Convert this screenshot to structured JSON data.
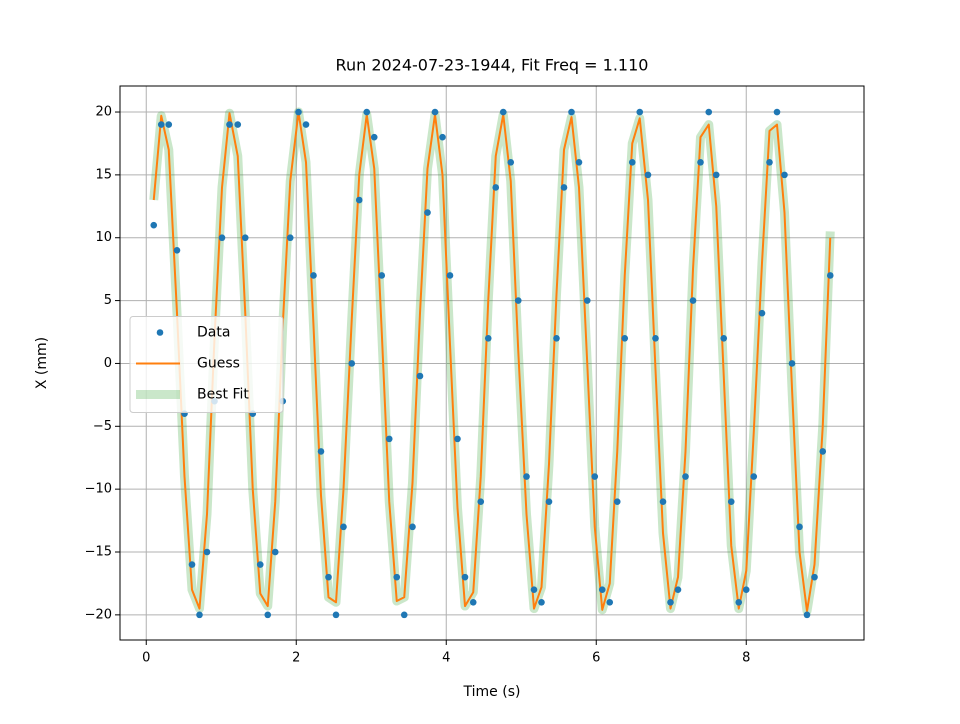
{
  "chart_data": {
    "type": "line",
    "title": "Run 2024-07-23-1944, Fit Freq = 1.110",
    "xlabel": "Time (s)",
    "ylabel": "X (mm)",
    "x": [
      0.1,
      0.2,
      0.3,
      0.41,
      0.51,
      0.61,
      0.71,
      0.81,
      0.91,
      1.01,
      1.11,
      1.22,
      1.32,
      1.42,
      1.52,
      1.62,
      1.72,
      1.82,
      1.92,
      2.03,
      2.13,
      2.23,
      2.33,
      2.43,
      2.53,
      2.63,
      2.74,
      2.84,
      2.94,
      3.04,
      3.14,
      3.24,
      3.34,
      3.44,
      3.55,
      3.65,
      3.75,
      3.85,
      3.95,
      4.05,
      4.15,
      4.25,
      4.36,
      4.46,
      4.56,
      4.66,
      4.76,
      4.86,
      4.96,
      5.07,
      5.17,
      5.27,
      5.37,
      5.47,
      5.57,
      5.67,
      5.77,
      5.88,
      5.98,
      6.08,
      6.18,
      6.28,
      6.38,
      6.48,
      6.58,
      6.69,
      6.79,
      6.89,
      6.99,
      7.09,
      7.19,
      7.29,
      7.39,
      7.5,
      7.6,
      7.7,
      7.8,
      7.9,
      8.0,
      8.1,
      8.21,
      8.31,
      8.41,
      8.51,
      8.61,
      8.71,
      8.81,
      8.91,
      9.02,
      9.12
    ],
    "series": [
      {
        "name": "Data",
        "mode": "markers",
        "color": "#1f77b4",
        "values": [
          11,
          19,
          19,
          9,
          -4,
          -16,
          -20,
          -15,
          -3,
          10,
          19,
          19,
          10,
          -4,
          -16,
          -20,
          -15,
          -3,
          10,
          20,
          19,
          7,
          -7,
          -17,
          -20,
          -13,
          0,
          13,
          20,
          18,
          7,
          -6,
          -17,
          -20,
          -13,
          -1,
          12,
          20,
          18,
          7,
          -6,
          -17,
          -19,
          -11,
          2,
          14,
          20,
          16,
          5,
          -9,
          -18,
          -19,
          -11,
          2,
          14,
          20,
          16,
          5,
          -9,
          -18,
          -19,
          -11,
          2,
          16,
          20,
          15,
          2,
          -11,
          -19,
          -18,
          -9,
          5,
          16,
          20,
          15,
          2,
          -11,
          -19,
          -18,
          -9,
          4,
          16,
          20,
          15,
          0,
          -13,
          -20,
          -17,
          -7,
          7
        ]
      },
      {
        "name": "Guess",
        "mode": "line",
        "color": "#ff7f0e",
        "values": [
          13,
          19.7,
          17,
          4,
          -9,
          -18,
          -19.5,
          -12,
          2,
          14,
          19.9,
          16.5,
          4,
          -10,
          -18.3,
          -19.3,
          -11,
          3,
          14.5,
          20,
          16,
          3,
          -10.5,
          -18.6,
          -19,
          -10,
          3.5,
          15,
          19.8,
          15.5,
          2.5,
          -11,
          -18.9,
          -18.6,
          -9.5,
          4,
          15.5,
          19.8,
          15,
          1.5,
          -11.5,
          -19.3,
          -18.2,
          -9,
          5,
          16.5,
          19.8,
          14.5,
          1,
          -12,
          -19.5,
          -17.8,
          -8,
          5.5,
          17,
          19.6,
          14,
          0,
          -13,
          -19.6,
          -17.5,
          -7,
          7,
          17.5,
          19.5,
          13,
          -0.5,
          -13.5,
          -19.5,
          -17,
          -7,
          7.5,
          18,
          19,
          12.5,
          -1,
          -14.5,
          -19.5,
          -16.5,
          -5.5,
          8,
          18.5,
          19,
          12,
          -2,
          -15,
          -19.7,
          -16,
          -5,
          10
        ]
      },
      {
        "name": "Best Fit",
        "mode": "line",
        "color": "#2ca02c",
        "values": [
          13,
          19.7,
          17,
          4,
          -9,
          -18,
          -19.5,
          -12,
          2,
          14,
          19.9,
          16.5,
          4,
          -10,
          -18.3,
          -19.3,
          -11,
          3,
          14.5,
          20,
          16,
          3,
          -10.5,
          -18.6,
          -19,
          -10,
          3.5,
          15,
          19.8,
          15.5,
          2.5,
          -11,
          -18.9,
          -18.6,
          -9.5,
          4,
          15.5,
          19.8,
          15,
          1.5,
          -11.5,
          -19.3,
          -18.2,
          -9,
          5,
          16.5,
          19.8,
          14.5,
          1,
          -12,
          -19.5,
          -17.8,
          -8,
          5.5,
          17,
          19.6,
          14,
          0,
          -13,
          -19.6,
          -17.5,
          -7,
          7,
          17.5,
          19.5,
          13,
          -0.5,
          -13.5,
          -19.5,
          -17,
          -7,
          7.5,
          18,
          19,
          12.5,
          -1,
          -14.5,
          -19.5,
          -16.5,
          -5.5,
          8,
          18.5,
          19,
          12,
          -2,
          -15,
          -19.7,
          -16,
          -5,
          10.5
        ]
      }
    ],
    "xlim": [
      -0.35,
      9.57
    ],
    "ylim": [
      -22,
      22.07
    ],
    "xticks": [
      0,
      2,
      4,
      6,
      8
    ],
    "yticks": [
      {
        "value": -20,
        "label": "−20"
      },
      {
        "value": -15,
        "label": "−15"
      },
      {
        "value": -10,
        "label": "−10"
      },
      {
        "value": -5,
        "label": "−5"
      },
      0,
      5,
      10,
      15,
      20
    ],
    "grid": true,
    "legend": "center left"
  }
}
